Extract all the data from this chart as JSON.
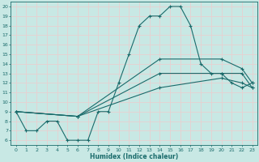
{
  "xlabel": "Humidex (Indice chaleur)",
  "ylabel": "",
  "bg_color": "#c8e8e4",
  "line_color": "#1a6b6b",
  "xlim": [
    -0.5,
    23.5
  ],
  "ylim": [
    5.5,
    20.5
  ],
  "xticks": [
    0,
    1,
    2,
    3,
    4,
    5,
    6,
    7,
    8,
    9,
    10,
    11,
    12,
    13,
    14,
    15,
    16,
    17,
    18,
    19,
    20,
    21,
    22,
    23
  ],
  "yticks": [
    6,
    7,
    8,
    9,
    10,
    11,
    12,
    13,
    14,
    15,
    16,
    17,
    18,
    19,
    20
  ],
  "curve1_x": [
    0,
    1,
    2,
    3,
    4,
    5,
    6,
    7,
    8,
    9,
    10,
    11,
    12,
    13,
    14,
    15,
    16,
    17,
    18,
    19,
    20,
    21,
    22,
    23
  ],
  "curve1_y": [
    9,
    7,
    7,
    8,
    8,
    6,
    6,
    6,
    9,
    9,
    12,
    15,
    18,
    19,
    19,
    20,
    20,
    18,
    14,
    13,
    13,
    12,
    11.5,
    12
  ],
  "curve2_x": [
    0,
    6,
    14,
    20,
    22,
    23
  ],
  "curve2_y": [
    9,
    8.5,
    14.5,
    14.5,
    13.5,
    12
  ],
  "curve3_x": [
    0,
    6,
    14,
    20,
    22,
    23
  ],
  "curve3_y": [
    9,
    8.5,
    13,
    13,
    13,
    11.5
  ],
  "curve4_x": [
    0,
    6,
    14,
    20,
    22,
    23
  ],
  "curve4_y": [
    9,
    8.5,
    11.5,
    12.5,
    12,
    11.5
  ]
}
